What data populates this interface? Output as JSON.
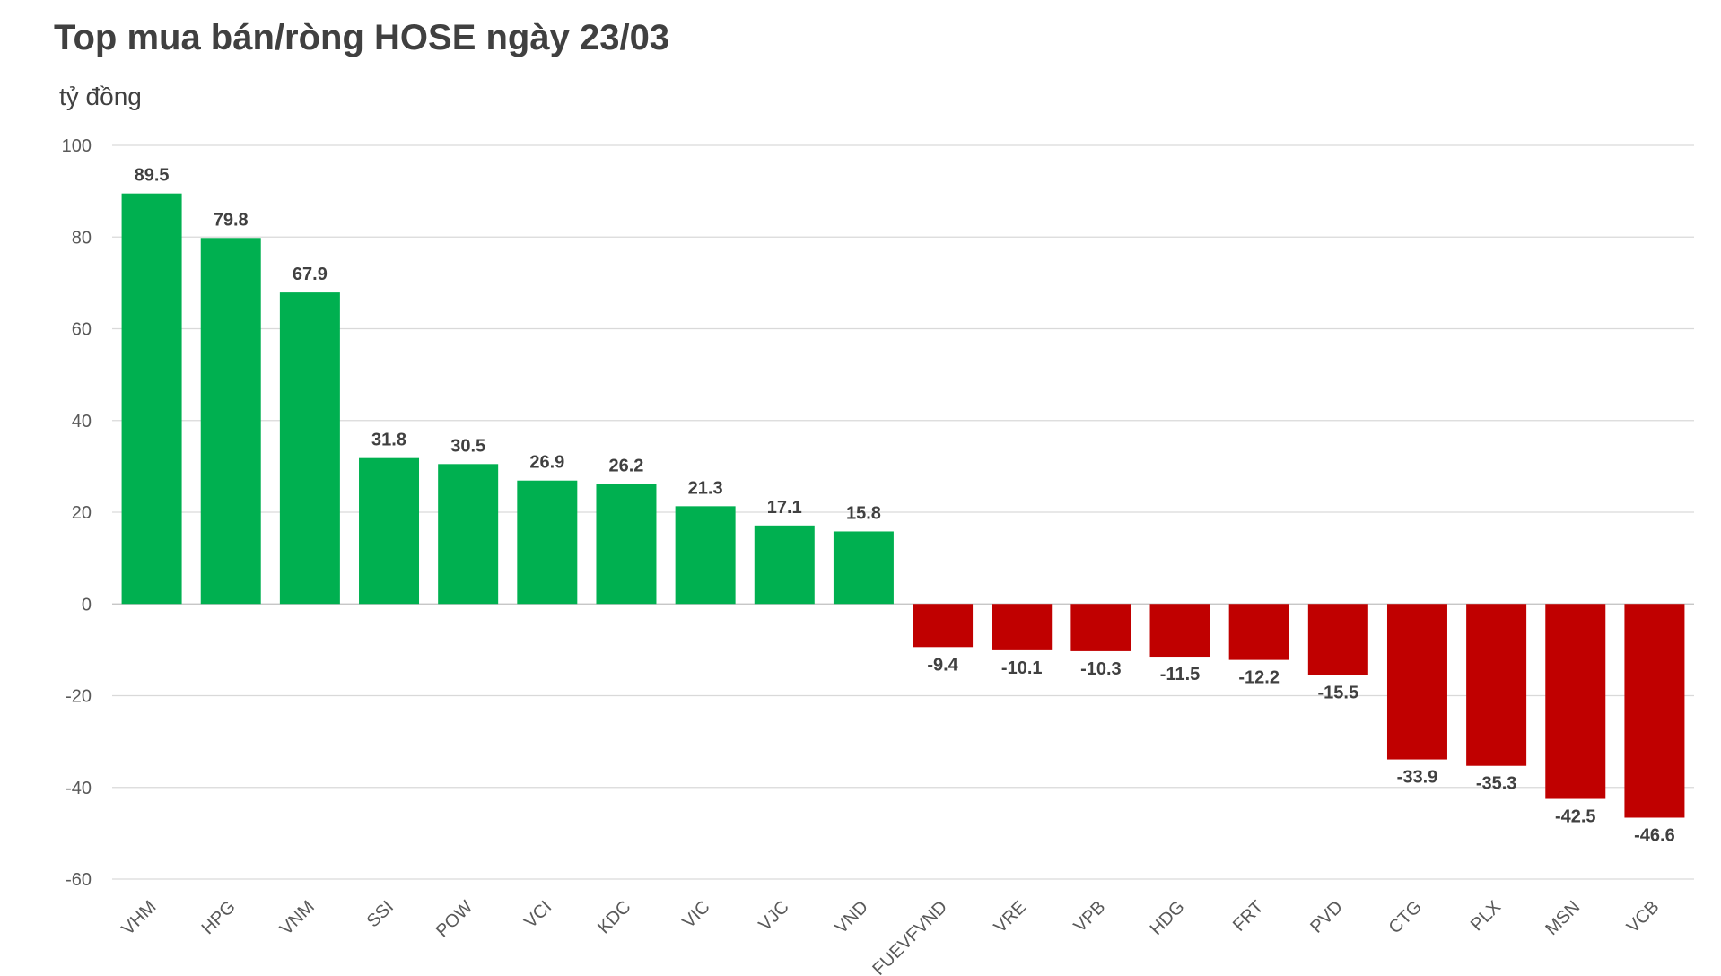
{
  "chart_data": {
    "type": "bar",
    "title": "Top mua bán/ròng HOSE ngày 23/03",
    "ylabel": "tỷ đồng",
    "xlabel": "",
    "ylim": [
      -60,
      100
    ],
    "yticks": [
      "100",
      "80",
      "60",
      "40",
      "20",
      "0",
      "-20",
      "-40",
      "-60"
    ],
    "grid": true,
    "legend": "none",
    "categories": [
      "VHM",
      "HPG",
      "VNM",
      "SSI",
      "POW",
      "VCI",
      "KDC",
      "VIC",
      "VJC",
      "VND",
      "FUEVFVND",
      "VRE",
      "VPB",
      "HDG",
      "FRT",
      "PVD",
      "CTG",
      "PLX",
      "MSN",
      "VCB"
    ],
    "values": [
      89.5,
      79.8,
      67.9,
      31.8,
      30.5,
      26.9,
      26.2,
      21.3,
      17.1,
      15.8,
      -9.4,
      -10.1,
      -10.3,
      -11.5,
      -12.2,
      -15.5,
      -33.9,
      -35.3,
      -42.5,
      -46.6
    ],
    "value_labels": [
      "89.5",
      "79.8",
      "67.9",
      "31.8",
      "30.5",
      "26.9",
      "26.2",
      "21.3",
      "17.1",
      "15.8",
      "-9.4",
      "-10.1",
      "-10.3",
      "-11.5",
      "-12.2",
      "-15.5",
      "-33.9",
      "-35.3",
      "-42.5",
      "-46.6"
    ],
    "colors": {
      "positive": "#00b050",
      "negative": "#c00000",
      "grid": "#d9d9d9",
      "text": "#404040"
    }
  }
}
